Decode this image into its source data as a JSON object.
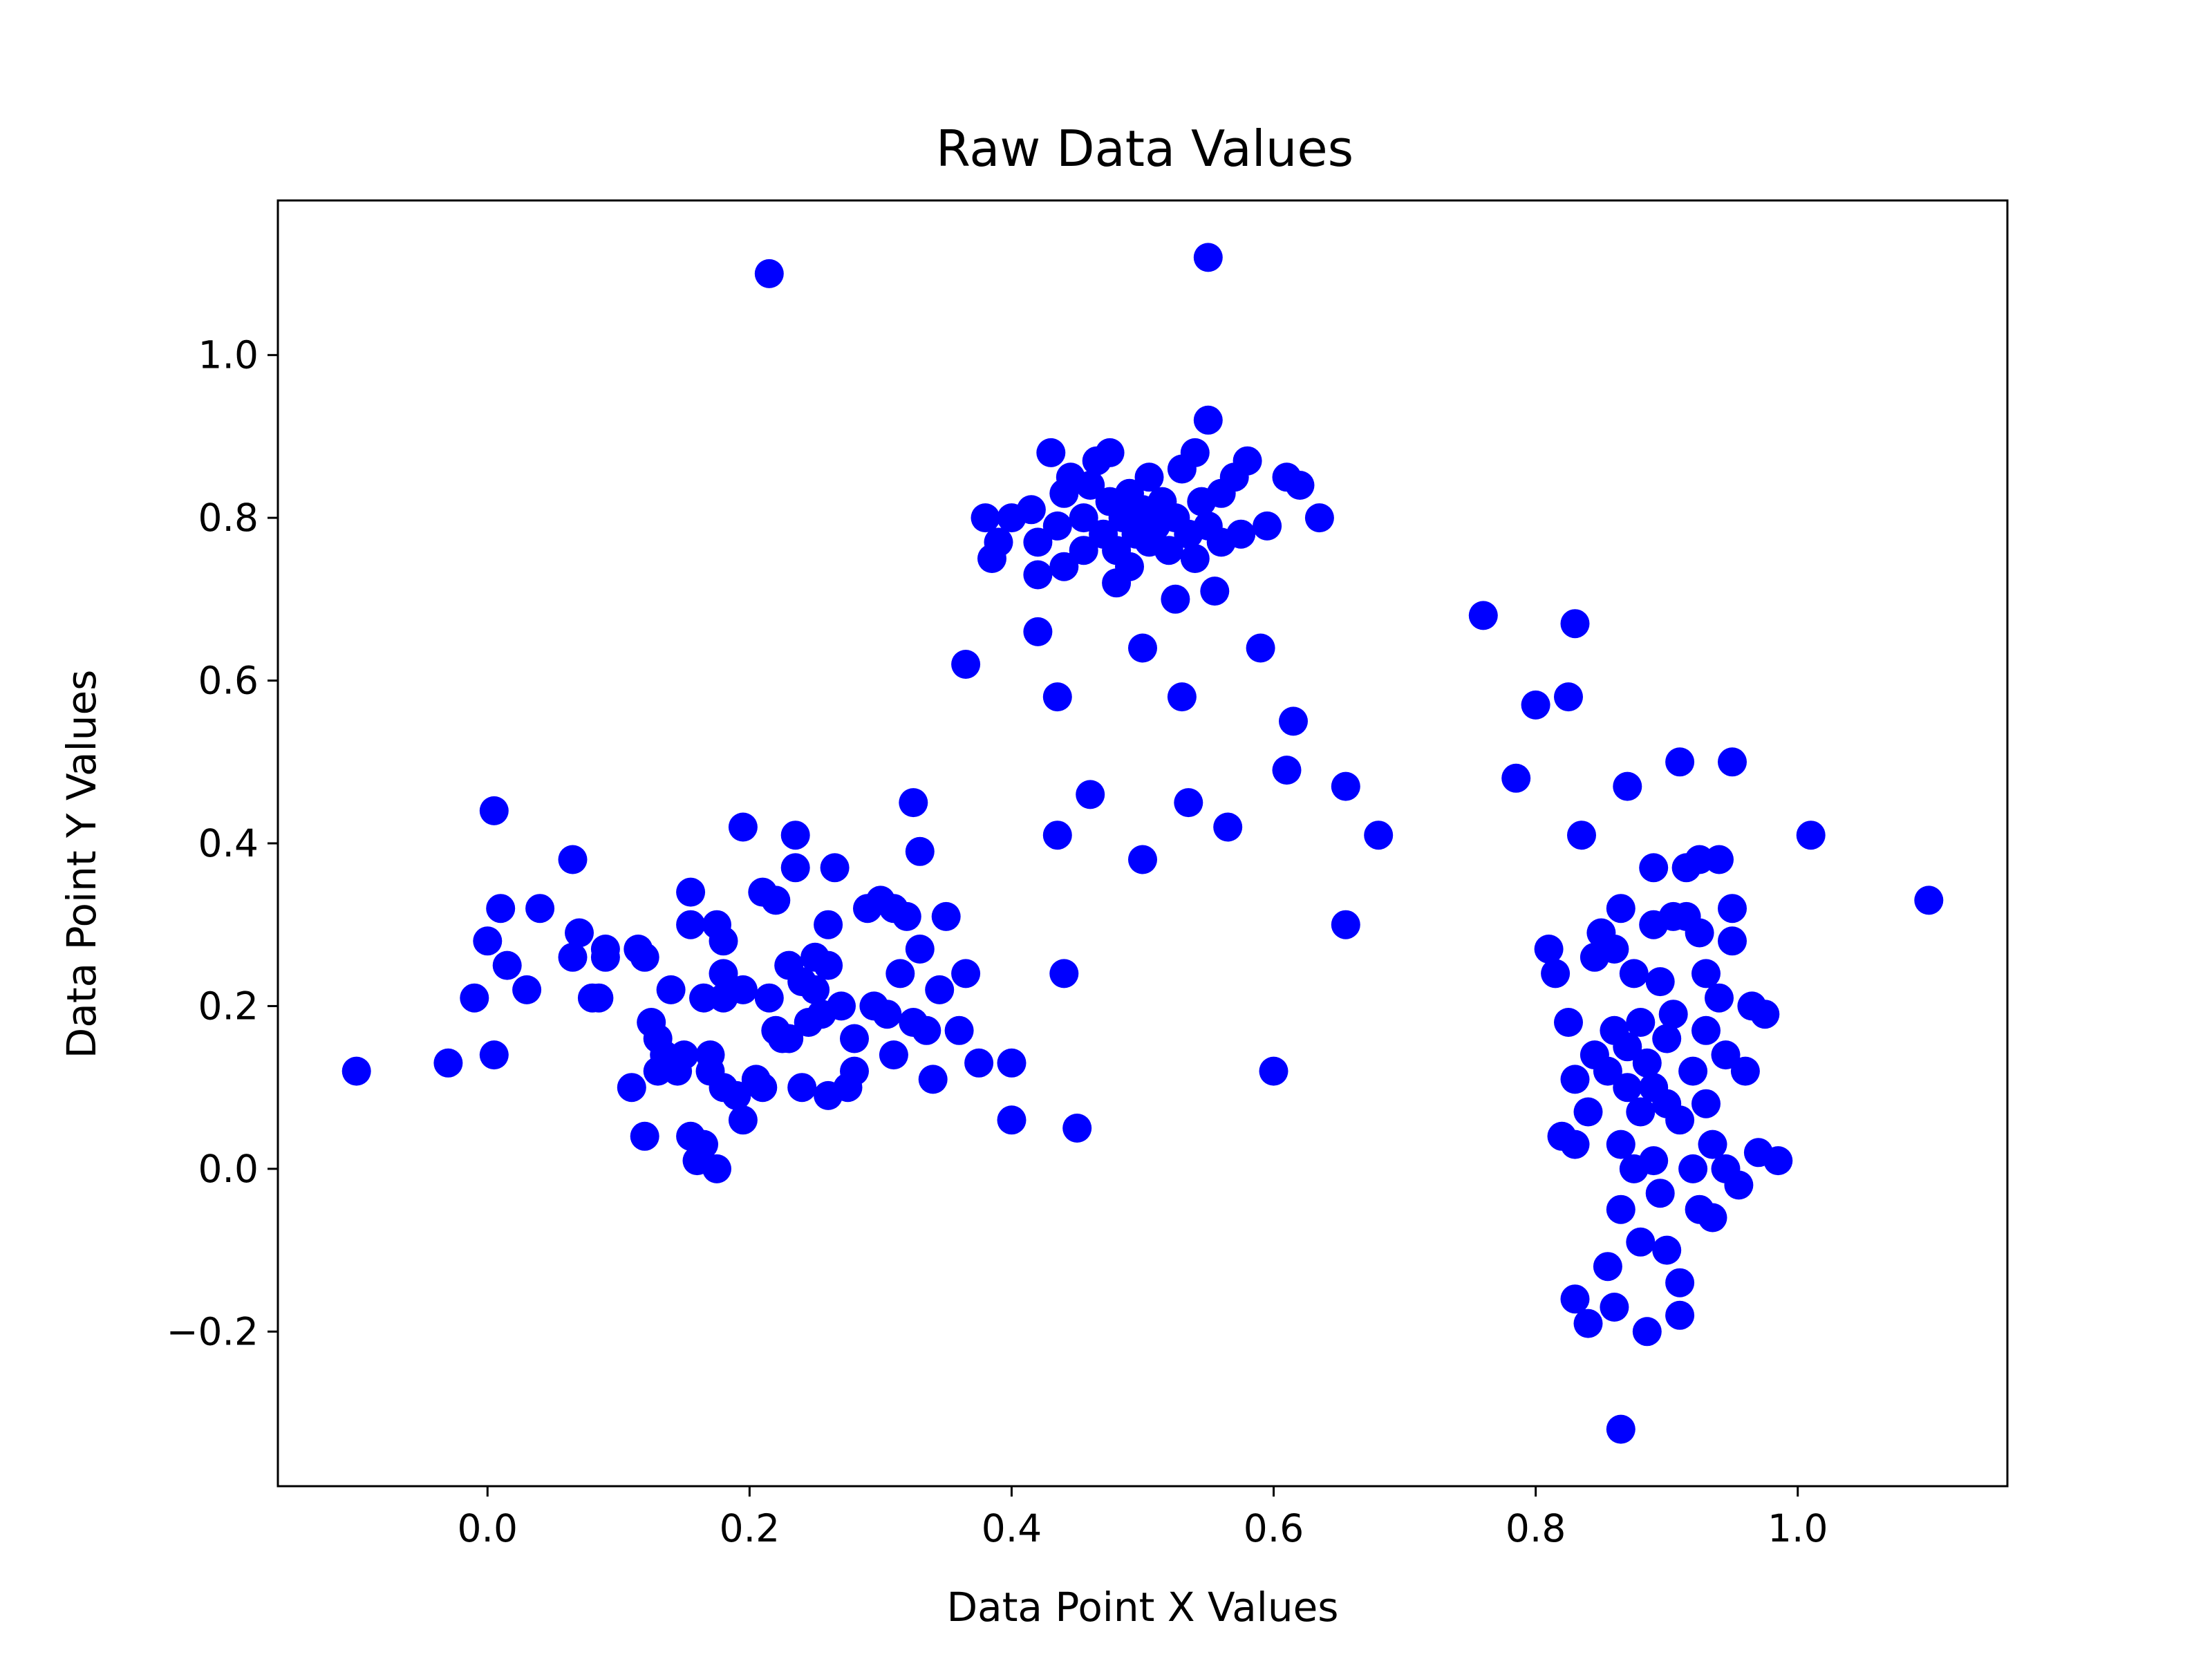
{
  "chart_data": {
    "type": "scatter",
    "title": "Raw Data Values",
    "xlabel": "Data Point X Values",
    "ylabel": "Data Point Y Values",
    "xlim": [
      -0.16,
      1.16
    ],
    "ylim": [
      -0.39,
      1.19
    ],
    "xticks": [
      0.0,
      0.2,
      0.4,
      0.6,
      0.8,
      1.0
    ],
    "xtick_labels": [
      "0.0",
      "0.2",
      "0.4",
      "0.6",
      "0.8",
      "1.0"
    ],
    "yticks": [
      -0.2,
      0.0,
      0.2,
      0.4,
      0.6,
      0.8,
      1.0
    ],
    "ytick_labels": [
      "−0.2",
      "0.0",
      "0.2",
      "0.4",
      "0.6",
      "0.8",
      "1.0"
    ],
    "grid": false,
    "marker_color": "#0000ff",
    "points": [
      [
        -0.1,
        0.12
      ],
      [
        -0.03,
        0.13
      ],
      [
        -0.01,
        0.21
      ],
      [
        0.0,
        0.28
      ],
      [
        0.005,
        0.44
      ],
      [
        0.005,
        0.14
      ],
      [
        0.01,
        0.32
      ],
      [
        0.015,
        0.25
      ],
      [
        0.03,
        0.22
      ],
      [
        0.04,
        0.32
      ],
      [
        0.065,
        0.38
      ],
      [
        0.065,
        0.26
      ],
      [
        0.07,
        0.29
      ],
      [
        0.08,
        0.21
      ],
      [
        0.085,
        0.21
      ],
      [
        0.09,
        0.27
      ],
      [
        0.09,
        0.26
      ],
      [
        0.11,
        0.1
      ],
      [
        0.115,
        0.27
      ],
      [
        0.12,
        0.26
      ],
      [
        0.12,
        0.04
      ],
      [
        0.125,
        0.18
      ],
      [
        0.13,
        0.16
      ],
      [
        0.13,
        0.12
      ],
      [
        0.135,
        0.14
      ],
      [
        0.14,
        0.22
      ],
      [
        0.145,
        0.12
      ],
      [
        0.15,
        0.14
      ],
      [
        0.155,
        0.34
      ],
      [
        0.155,
        0.3
      ],
      [
        0.155,
        0.04
      ],
      [
        0.16,
        0.01
      ],
      [
        0.165,
        0.03
      ],
      [
        0.165,
        0.21
      ],
      [
        0.17,
        0.14
      ],
      [
        0.17,
        0.12
      ],
      [
        0.175,
        0.3
      ],
      [
        0.175,
        0.0
      ],
      [
        0.18,
        0.28
      ],
      [
        0.18,
        0.24
      ],
      [
        0.18,
        0.21
      ],
      [
        0.18,
        0.1
      ],
      [
        0.19,
        0.09
      ],
      [
        0.195,
        0.42
      ],
      [
        0.195,
        0.22
      ],
      [
        0.195,
        0.06
      ],
      [
        0.205,
        0.11
      ],
      [
        0.21,
        0.34
      ],
      [
        0.21,
        0.1
      ],
      [
        0.215,
        0.21
      ],
      [
        0.22,
        0.33
      ],
      [
        0.22,
        0.17
      ],
      [
        0.225,
        0.16
      ],
      [
        0.23,
        0.25
      ],
      [
        0.23,
        0.16
      ],
      [
        0.235,
        0.41
      ],
      [
        0.235,
        0.37
      ],
      [
        0.24,
        0.23
      ],
      [
        0.24,
        0.1
      ],
      [
        0.245,
        0.18
      ],
      [
        0.25,
        0.26
      ],
      [
        0.25,
        0.22
      ],
      [
        0.255,
        0.19
      ],
      [
        0.26,
        0.3
      ],
      [
        0.26,
        0.25
      ],
      [
        0.26,
        0.09
      ],
      [
        0.265,
        0.37
      ],
      [
        0.27,
        0.2
      ],
      [
        0.275,
        0.1
      ],
      [
        0.28,
        0.16
      ],
      [
        0.28,
        0.12
      ],
      [
        0.29,
        0.32
      ],
      [
        0.295,
        0.2
      ],
      [
        0.3,
        0.33
      ],
      [
        0.305,
        0.19
      ],
      [
        0.31,
        0.32
      ],
      [
        0.31,
        0.14
      ],
      [
        0.315,
        0.24
      ],
      [
        0.32,
        0.31
      ],
      [
        0.325,
        0.45
      ],
      [
        0.325,
        0.18
      ],
      [
        0.33,
        0.39
      ],
      [
        0.33,
        0.27
      ],
      [
        0.335,
        0.17
      ],
      [
        0.34,
        0.11
      ],
      [
        0.345,
        0.22
      ],
      [
        0.35,
        0.31
      ],
      [
        0.36,
        0.17
      ],
      [
        0.365,
        0.62
      ],
      [
        0.365,
        0.24
      ],
      [
        0.375,
        0.13
      ],
      [
        0.38,
        0.8
      ],
      [
        0.385,
        0.75
      ],
      [
        0.39,
        0.77
      ],
      [
        0.4,
        0.8
      ],
      [
        0.4,
        0.06
      ],
      [
        0.4,
        0.13
      ],
      [
        0.415,
        0.81
      ],
      [
        0.42,
        0.66
      ],
      [
        0.42,
        0.77
      ],
      [
        0.42,
        0.73
      ],
      [
        0.43,
        0.88
      ],
      [
        0.435,
        0.79
      ],
      [
        0.435,
        0.41
      ],
      [
        0.435,
        0.58
      ],
      [
        0.44,
        0.83
      ],
      [
        0.44,
        0.74
      ],
      [
        0.44,
        0.24
      ],
      [
        0.445,
        0.85
      ],
      [
        0.45,
        0.05
      ],
      [
        0.455,
        0.8
      ],
      [
        0.455,
        0.76
      ],
      [
        0.46,
        0.46
      ],
      [
        0.46,
        0.84
      ],
      [
        0.465,
        0.87
      ],
      [
        0.47,
        0.78
      ],
      [
        0.475,
        0.88
      ],
      [
        0.475,
        0.82
      ],
      [
        0.48,
        0.72
      ],
      [
        0.48,
        0.76
      ],
      [
        0.485,
        0.8
      ],
      [
        0.49,
        0.74
      ],
      [
        0.49,
        0.83
      ],
      [
        0.495,
        0.78
      ],
      [
        0.5,
        0.64
      ],
      [
        0.5,
        0.38
      ],
      [
        0.5,
        0.81
      ],
      [
        0.505,
        0.85
      ],
      [
        0.505,
        0.77
      ],
      [
        0.51,
        0.79
      ],
      [
        0.515,
        0.82
      ],
      [
        0.52,
        0.76
      ],
      [
        0.525,
        0.7
      ],
      [
        0.525,
        0.8
      ],
      [
        0.53,
        0.58
      ],
      [
        0.53,
        0.86
      ],
      [
        0.535,
        0.45
      ],
      [
        0.535,
        0.78
      ],
      [
        0.54,
        0.88
      ],
      [
        0.54,
        0.75
      ],
      [
        0.545,
        0.82
      ],
      [
        0.55,
        1.12
      ],
      [
        0.55,
        0.92
      ],
      [
        0.55,
        0.79
      ],
      [
        0.555,
        0.71
      ],
      [
        0.56,
        0.83
      ],
      [
        0.56,
        0.77
      ],
      [
        0.565,
        0.42
      ],
      [
        0.57,
        0.85
      ],
      [
        0.575,
        0.78
      ],
      [
        0.58,
        0.87
      ],
      [
        0.59,
        0.64
      ],
      [
        0.595,
        0.79
      ],
      [
        0.6,
        0.12
      ],
      [
        0.61,
        0.49
      ],
      [
        0.61,
        0.85
      ],
      [
        0.615,
        0.55
      ],
      [
        0.62,
        0.84
      ],
      [
        0.635,
        0.8
      ],
      [
        0.655,
        0.47
      ],
      [
        0.655,
        0.3
      ],
      [
        0.68,
        0.41
      ],
      [
        0.215,
        1.1
      ],
      [
        0.76,
        0.68
      ],
      [
        0.785,
        0.48
      ],
      [
        0.8,
        0.57
      ],
      [
        0.81,
        0.27
      ],
      [
        0.815,
        0.24
      ],
      [
        0.82,
        0.04
      ],
      [
        0.825,
        0.58
      ],
      [
        0.825,
        0.18
      ],
      [
        0.83,
        0.67
      ],
      [
        0.83,
        0.11
      ],
      [
        0.83,
        0.03
      ],
      [
        0.83,
        -0.16
      ],
      [
        0.835,
        0.41
      ],
      [
        0.84,
        0.07
      ],
      [
        0.84,
        -0.19
      ],
      [
        0.845,
        0.14
      ],
      [
        0.845,
        0.26
      ],
      [
        0.85,
        0.29
      ],
      [
        0.855,
        0.12
      ],
      [
        0.855,
        -0.12
      ],
      [
        0.86,
        0.17
      ],
      [
        0.86,
        0.27
      ],
      [
        0.86,
        -0.17
      ],
      [
        0.865,
        0.32
      ],
      [
        0.865,
        0.03
      ],
      [
        0.865,
        -0.05
      ],
      [
        0.865,
        -0.32
      ],
      [
        0.87,
        0.47
      ],
      [
        0.87,
        0.15
      ],
      [
        0.87,
        0.1
      ],
      [
        0.875,
        0.24
      ],
      [
        0.875,
        0.0
      ],
      [
        0.88,
        0.18
      ],
      [
        0.88,
        0.07
      ],
      [
        0.88,
        -0.09
      ],
      [
        0.885,
        0.13
      ],
      [
        0.885,
        -0.2
      ],
      [
        0.89,
        0.37
      ],
      [
        0.89,
        0.3
      ],
      [
        0.89,
        0.1
      ],
      [
        0.89,
        0.01
      ],
      [
        0.895,
        0.23
      ],
      [
        0.895,
        -0.03
      ],
      [
        0.9,
        0.16
      ],
      [
        0.9,
        0.08
      ],
      [
        0.9,
        -0.1
      ],
      [
        0.905,
        0.31
      ],
      [
        0.905,
        0.19
      ],
      [
        0.91,
        0.5
      ],
      [
        0.91,
        0.06
      ],
      [
        0.91,
        -0.14
      ],
      [
        0.91,
        -0.18
      ],
      [
        0.915,
        0.37
      ],
      [
        0.915,
        0.31
      ],
      [
        0.92,
        0.12
      ],
      [
        0.92,
        0.0
      ],
      [
        0.925,
        0.38
      ],
      [
        0.925,
        0.29
      ],
      [
        0.925,
        -0.05
      ],
      [
        0.93,
        0.24
      ],
      [
        0.93,
        0.17
      ],
      [
        0.93,
        0.08
      ],
      [
        0.935,
        -0.06
      ],
      [
        0.935,
        0.03
      ],
      [
        0.94,
        0.21
      ],
      [
        0.94,
        0.38
      ],
      [
        0.945,
        0.14
      ],
      [
        0.945,
        0.0
      ],
      [
        0.95,
        0.32
      ],
      [
        0.95,
        0.28
      ],
      [
        0.95,
        0.5
      ],
      [
        0.955,
        -0.02
      ],
      [
        0.96,
        0.12
      ],
      [
        0.965,
        0.2
      ],
      [
        0.97,
        0.02
      ],
      [
        0.975,
        0.19
      ],
      [
        0.985,
        0.01
      ],
      [
        1.01,
        0.41
      ],
      [
        1.1,
        0.33
      ]
    ]
  }
}
